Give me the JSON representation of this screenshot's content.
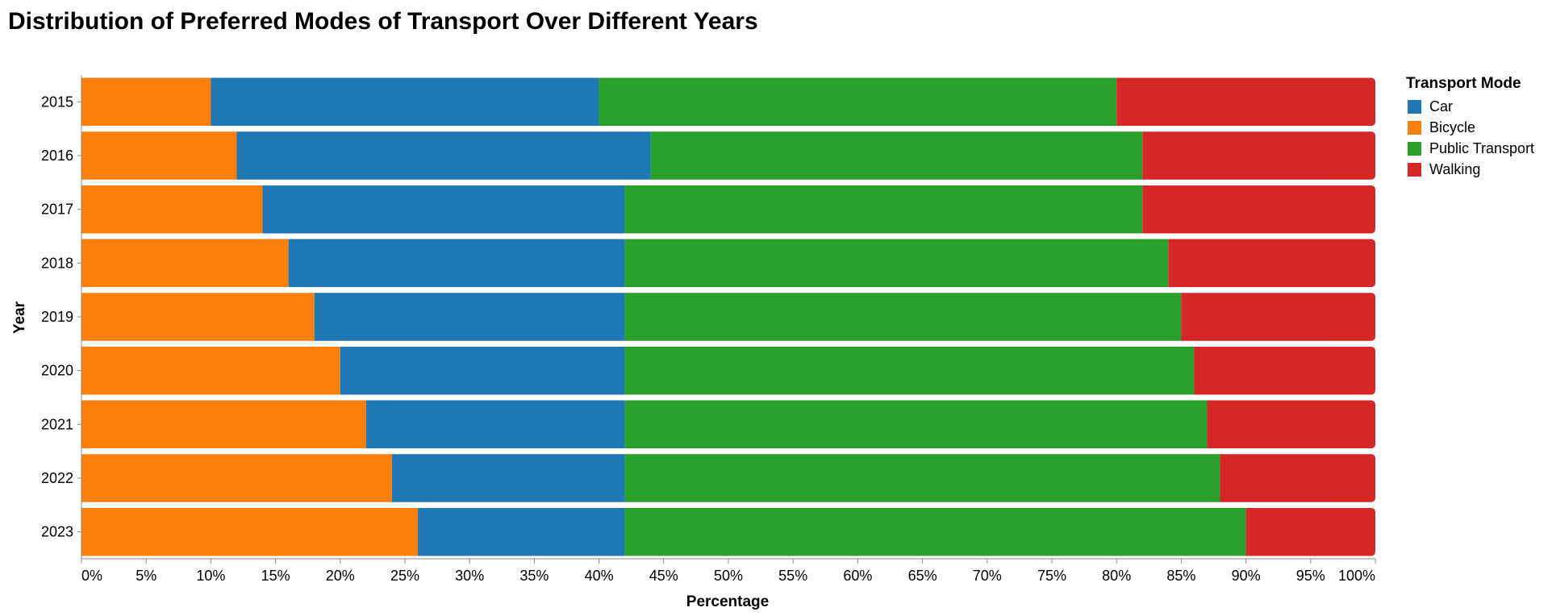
{
  "chart_data": {
    "type": "bar",
    "orientation": "horizontal",
    "stacked": "normalized",
    "title": "Distribution of Preferred Modes of Transport Over Different Years",
    "xlabel": "Percentage",
    "ylabel": "Year",
    "xlim": [
      0,
      100
    ],
    "x_ticks": [
      "0%",
      "5%",
      "10%",
      "15%",
      "20%",
      "25%",
      "30%",
      "35%",
      "40%",
      "45%",
      "50%",
      "55%",
      "60%",
      "65%",
      "70%",
      "75%",
      "80%",
      "85%",
      "90%",
      "95%",
      "100%"
    ],
    "grid": false,
    "legend": {
      "title": "Transport Mode",
      "position": "right",
      "entries": [
        {
          "name": "Car",
          "color": "#1f77b4"
        },
        {
          "name": "Bicycle",
          "color": "#ff7f0e"
        },
        {
          "name": "Public Transport",
          "color": "#2ca02c"
        },
        {
          "name": "Walking",
          "color": "#d62728"
        }
      ]
    },
    "categories": [
      "2015",
      "2016",
      "2017",
      "2018",
      "2019",
      "2020",
      "2021",
      "2022",
      "2023"
    ],
    "stack_order": [
      "Bicycle",
      "Car",
      "Public Transport",
      "Walking"
    ],
    "series": [
      {
        "name": "Bicycle",
        "color": "#ff7f0e",
        "values": [
          10,
          12,
          14,
          16,
          18,
          20,
          22,
          24,
          26
        ]
      },
      {
        "name": "Car",
        "color": "#1f77b4",
        "values": [
          30,
          32,
          28,
          26,
          24,
          22,
          20,
          18,
          16
        ]
      },
      {
        "name": "Public Transport",
        "color": "#2ca02c",
        "values": [
          40,
          38,
          40,
          42,
          43,
          44,
          45,
          46,
          48
        ]
      },
      {
        "name": "Walking",
        "color": "#d62728",
        "values": [
          20,
          18,
          18,
          16,
          15,
          14,
          13,
          12,
          10
        ]
      }
    ]
  }
}
